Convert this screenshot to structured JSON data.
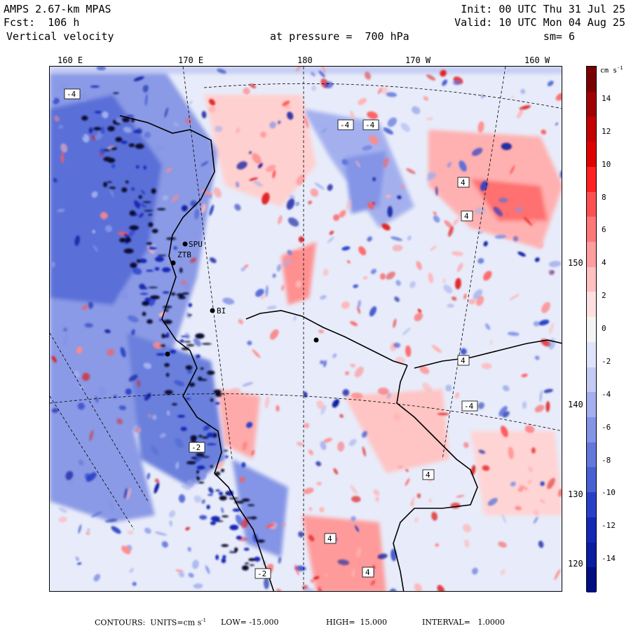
{
  "header": {
    "line1_left": "AMPS 2.67-km MPAS",
    "line2_left": "Fcst:  106 h",
    "line3_left": "Vertical velocity",
    "line3_mid": "at pressure =  700 hPa",
    "line1_right": "Init: 00 UTC Thu 31 Jul 25",
    "line2_right": "Valid: 10 UTC Mon 04 Aug 25",
    "line3_right": "sm= 6"
  },
  "longitude_labels": [
    "160 E",
    "170 E",
    "180",
    "170 W",
    "160 W"
  ],
  "latitude_labels": [
    "150 W",
    "140 W",
    "130 W",
    "120 W"
  ],
  "colorbar": {
    "units": "cm s",
    "units_exp": "-1",
    "ticks": [
      "14",
      "12",
      "10",
      "8",
      "6",
      "4",
      "2",
      "0",
      "-2",
      "-4",
      "-6",
      "-8",
      "-10",
      "-12",
      "-14"
    ],
    "colors": [
      "#7a0000",
      "#a00000",
      "#c40000",
      "#e00000",
      "#ff2020",
      "#ff5050",
      "#ff7878",
      "#ff9e9e",
      "#ffc0c0",
      "#ffe0e0",
      "#f4f4f4",
      "#e0e4fa",
      "#c4ccf4",
      "#a4b0ee",
      "#8494e6",
      "#6478dc",
      "#4860d4",
      "#2840c8",
      "#1428b8",
      "#0a1ca0",
      "#000e80"
    ]
  },
  "station_labels": [
    "SPU",
    "ZTB",
    "BI"
  ],
  "contour_labels": [
    "-4",
    "-4",
    "-4",
    "4",
    "4",
    "-2",
    "4",
    "-4",
    "4",
    "4",
    "4",
    "-2"
  ],
  "footer": {
    "contours": "CONTOURS:  UNITS=cm s",
    "units_exp": "-1",
    "low": "LOW= -15.000",
    "high": "HIGH=  15.000",
    "interval": "INTERVAL=   1.0000"
  }
}
